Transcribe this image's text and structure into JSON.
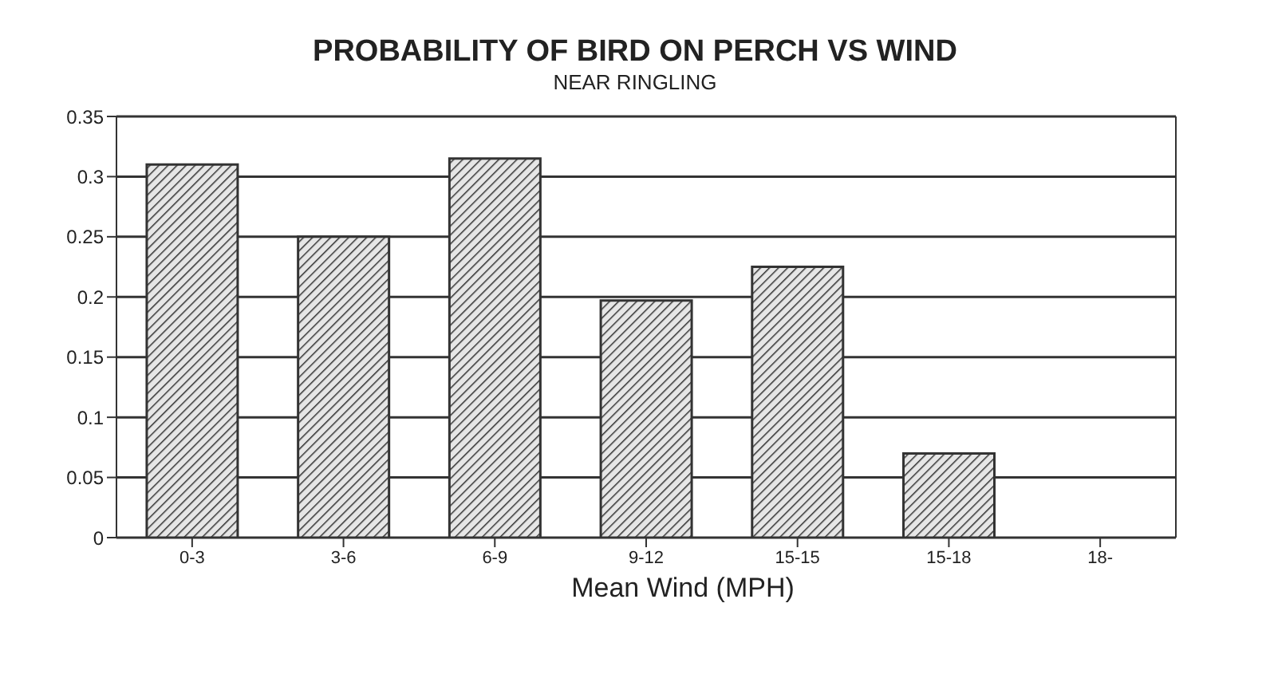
{
  "chart_data": {
    "type": "bar",
    "title": "PROBABILITY OF BIRD ON PERCH VS WIND",
    "subtitle": "NEAR RINGLING",
    "xlabel": "Mean Wind (MPH)",
    "categories": [
      "0-3",
      "3-6",
      "6-9",
      "9-12",
      "15-15",
      "15-18",
      "18-"
    ],
    "values": [
      0.31,
      0.25,
      0.315,
      0.197,
      0.225,
      0.07,
      0
    ],
    "color": "#333333",
    "ylim": [
      0,
      0.35
    ],
    "yticks": [
      0,
      0.05,
      0.1,
      0.15,
      0.2,
      0.25,
      0.3,
      0.35
    ],
    "grid": "y"
  }
}
